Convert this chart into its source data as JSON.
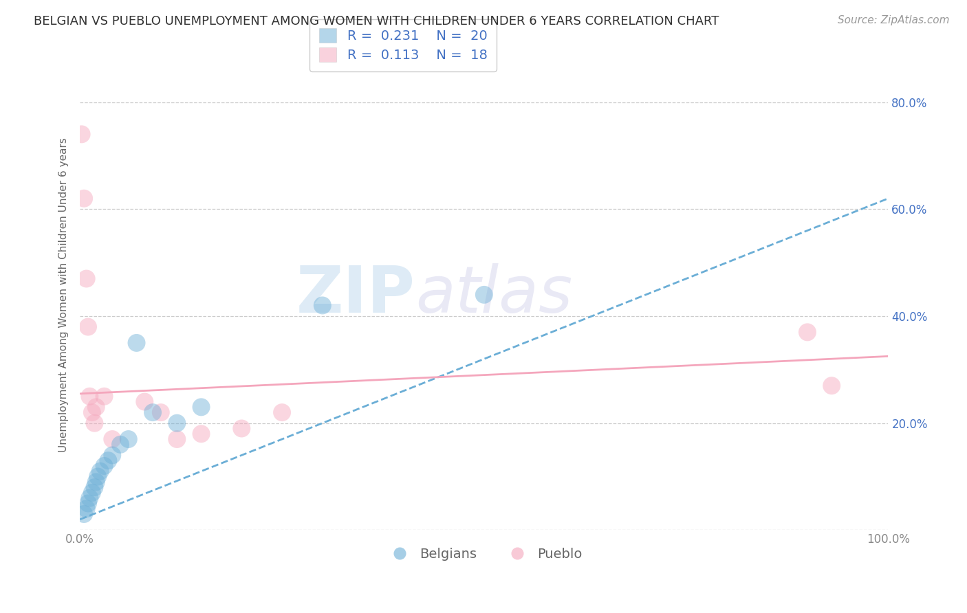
{
  "title": "BELGIAN VS PUEBLO UNEMPLOYMENT AMONG WOMEN WITH CHILDREN UNDER 6 YEARS CORRELATION CHART",
  "source": "Source: ZipAtlas.com",
  "ylabel": "Unemployment Among Women with Children Under 6 years",
  "xlim": [
    0,
    1.0
  ],
  "ylim": [
    0,
    0.88
  ],
  "xticks": [
    0.0,
    0.25,
    0.5,
    0.75,
    1.0
  ],
  "xticklabels": [
    "0.0%",
    "",
    "",
    "",
    "100.0%"
  ],
  "yticks": [
    0.0,
    0.2,
    0.4,
    0.6,
    0.8
  ],
  "yticklabels_right": [
    "",
    "20.0%",
    "40.0%",
    "60.0%",
    "80.0%"
  ],
  "legend_labels": [
    "Belgians",
    "Pueblo"
  ],
  "belgian_R": "0.231",
  "belgian_N": "20",
  "pueblo_R": "0.113",
  "pueblo_N": "18",
  "belgian_color": "#6baed6",
  "pueblo_color": "#f4a6bc",
  "belgian_scatter_x": [
    0.005,
    0.008,
    0.01,
    0.012,
    0.015,
    0.018,
    0.02,
    0.022,
    0.025,
    0.03,
    0.035,
    0.04,
    0.05,
    0.06,
    0.07,
    0.09,
    0.12,
    0.15,
    0.3,
    0.5
  ],
  "belgian_scatter_y": [
    0.03,
    0.04,
    0.05,
    0.06,
    0.07,
    0.08,
    0.09,
    0.1,
    0.11,
    0.12,
    0.13,
    0.14,
    0.16,
    0.17,
    0.35,
    0.22,
    0.2,
    0.23,
    0.42,
    0.44
  ],
  "pueblo_scatter_x": [
    0.002,
    0.005,
    0.008,
    0.01,
    0.012,
    0.015,
    0.018,
    0.02,
    0.04,
    0.08,
    0.12,
    0.2,
    0.25,
    0.15,
    0.9,
    0.93,
    0.1,
    0.03
  ],
  "pueblo_scatter_y": [
    0.74,
    0.62,
    0.47,
    0.38,
    0.25,
    0.22,
    0.2,
    0.23,
    0.17,
    0.24,
    0.17,
    0.19,
    0.22,
    0.18,
    0.37,
    0.27,
    0.22,
    0.25
  ],
  "belgian_trend_slope": 0.6,
  "belgian_trend_intercept": 0.02,
  "pueblo_trend_slope": 0.07,
  "pueblo_trend_intercept": 0.255,
  "watermark_zip": "ZIP",
  "watermark_atlas": "atlas",
  "background_color": "#ffffff",
  "grid_color": "#cccccc",
  "dot_size": 350,
  "dot_alpha": 0.45,
  "title_fontsize": 13,
  "axis_label_fontsize": 11,
  "tick_fontsize": 12,
  "legend_fontsize": 14,
  "source_fontsize": 11,
  "legend_text_color": "#4472c4",
  "right_tick_color": "#4472c4"
}
